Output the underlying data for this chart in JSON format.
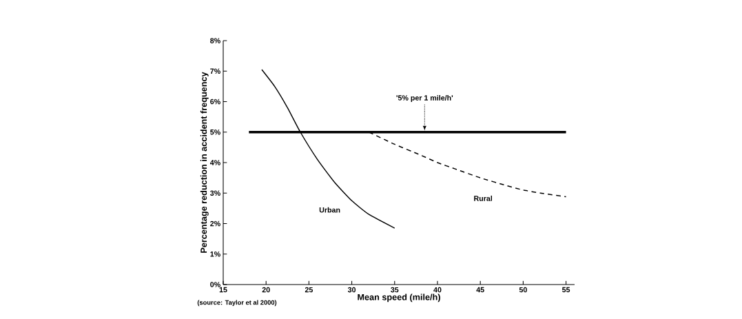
{
  "chart_data": {
    "type": "line",
    "xlabel": "Mean speed (mile/h)",
    "ylabel": "Percentage reduction in accident frequency",
    "xlim": [
      15,
      56
    ],
    "ylim": [
      0,
      8
    ],
    "xticks": [
      15,
      20,
      25,
      30,
      35,
      40,
      45,
      50,
      55
    ],
    "yticks": [
      {
        "value": 0,
        "label": "0%"
      },
      {
        "value": 1,
        "label": "1%"
      },
      {
        "value": 2,
        "label": "2%"
      },
      {
        "value": 3,
        "label": "3%"
      },
      {
        "value": 4,
        "label": "4%"
      },
      {
        "value": 5,
        "label": "5%"
      },
      {
        "value": 6,
        "label": "6%"
      },
      {
        "value": 7,
        "label": "7%"
      },
      {
        "value": 8,
        "label": "8%"
      }
    ],
    "marker": "none",
    "series": [
      {
        "name": "Urban",
        "color": "#000000",
        "line_style": "solid",
        "x": [
          19.5,
          21,
          22.5,
          24,
          26,
          28,
          30,
          32,
          35
        ],
        "values": [
          7.05,
          6.5,
          5.8,
          5.0,
          4.1,
          3.35,
          2.75,
          2.3,
          1.85
        ]
      },
      {
        "name": "Rural",
        "color": "#000000",
        "line_style": "dashed",
        "x": [
          32,
          35,
          38,
          40,
          42,
          45,
          48,
          50,
          52,
          55
        ],
        "values": [
          5.0,
          4.6,
          4.25,
          4.0,
          3.8,
          3.5,
          3.25,
          3.1,
          3.0,
          2.88
        ]
      },
      {
        "color": "#000000",
        "line_style": "solid",
        "x": [
          18,
          55
        ],
        "values": [
          5,
          5
        ]
      }
    ],
    "annotations": [
      {
        "text": "'5% per 1 mile/h'",
        "x": 38.5,
        "y": 5
      },
      "(source: Taylor et al 2000)"
    ]
  }
}
